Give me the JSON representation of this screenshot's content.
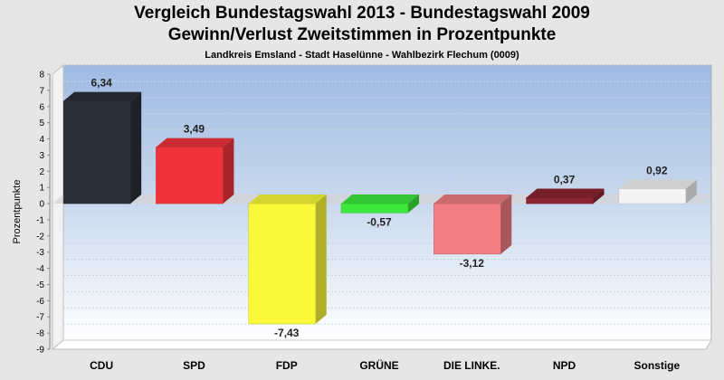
{
  "chart_data": {
    "type": "bar",
    "title": "Vergleich Bundestagswahl 2013 - Bundestagswahl 2009",
    "subtitle": "Gewinn/Verlust Zweitstimmen in Prozentpunkte",
    "caption": "Landkreis Emsland - Stadt Haselünne - Wahlbezirk Flechum (0009)",
    "ylabel": "Prozentpunkte",
    "xlabel": "",
    "ylim": [
      -9,
      8
    ],
    "yticks": [
      8,
      7,
      6,
      5,
      4,
      3,
      2,
      1,
      0,
      -1,
      -2,
      -3,
      -4,
      -5,
      -6,
      -7,
      -8,
      -9
    ],
    "categories": [
      "CDU",
      "SPD",
      "FDP",
      "GRÜNE",
      "DIE LINKE.",
      "NPD",
      "Sonstige"
    ],
    "values": [
      6.34,
      3.49,
      -7.43,
      -0.57,
      -3.12,
      0.37,
      0.92
    ],
    "value_labels": [
      "6,34",
      "3,49",
      "-7,43",
      "-0,57",
      "-3,12",
      "0,37",
      "0,92"
    ],
    "colors": [
      "#2b2f38",
      "#f0333a",
      "#f9f93a",
      "#3ce83c",
      "#f07e82",
      "#8b2330",
      "#f4f4f4"
    ],
    "grid": true,
    "legend": "none"
  }
}
